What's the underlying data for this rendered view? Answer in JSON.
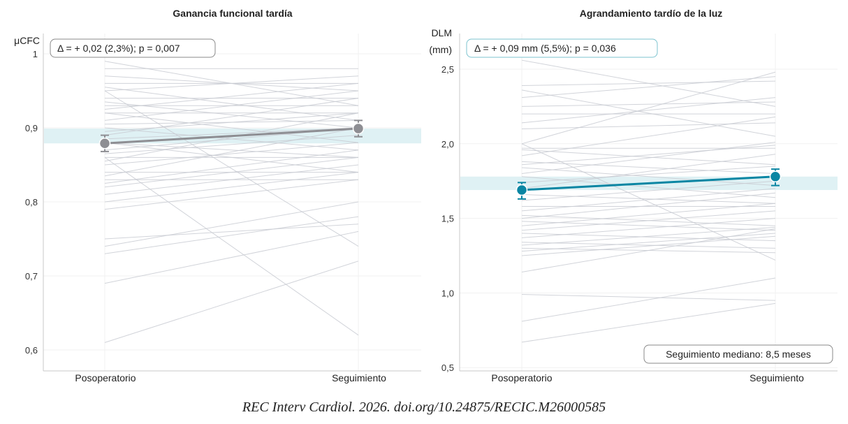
{
  "colors": {
    "individual_line": "#c9ccd3",
    "band": "#dff1f4",
    "left_mean": "#8e8e93",
    "right_mean": "#0a86a3",
    "right_box_border": "#7cc3cf",
    "left_box_border": "#888888",
    "grid": "#f1f1f1",
    "axis": "#c8c8c8"
  },
  "citation": "REC Interv Cardiol. 2026. doi.org/10.24875/RECIC.M26000585",
  "chart_data": [
    {
      "type": "line",
      "title": "Ganancia funcional tardía",
      "ylabel": "μCFC",
      "xlabel": "",
      "categories": [
        "Posoperatorio",
        "Seguimiento"
      ],
      "ylim": [
        0.57,
        1.0
      ],
      "yticks": [
        0.6,
        0.7,
        0.8,
        0.9,
        1.0
      ],
      "ytick_labels": [
        "0,6",
        "0,7",
        "0,8",
        "0,9",
        "1"
      ],
      "grid": true,
      "annotation": "Δ = + 0,02 (2,3%); p = 0,007",
      "mean": {
        "values": [
          0.879,
          0.899
        ],
        "ci_low": [
          0.868,
          0.888
        ],
        "ci_high": [
          0.89,
          0.91
        ]
      },
      "band": [
        0.879,
        0.899
      ],
      "individual": [
        [
          0.99,
          0.93
        ],
        [
          0.98,
          0.98
        ],
        [
          0.96,
          0.96
        ],
        [
          0.955,
          0.91
        ],
        [
          0.95,
          0.97
        ],
        [
          0.94,
          0.94
        ],
        [
          0.935,
          0.9
        ],
        [
          0.93,
          0.93
        ],
        [
          0.925,
          0.96
        ],
        [
          0.92,
          0.92
        ],
        [
          0.91,
          0.95
        ],
        [
          0.905,
          0.91
        ],
        [
          0.9,
          0.87
        ],
        [
          0.895,
          0.92
        ],
        [
          0.89,
          0.94
        ],
        [
          0.885,
          0.9
        ],
        [
          0.88,
          0.86
        ],
        [
          0.87,
          0.9
        ],
        [
          0.865,
          0.89
        ],
        [
          0.86,
          0.86
        ],
        [
          0.855,
          0.92
        ],
        [
          0.85,
          0.88
        ],
        [
          0.84,
          0.84
        ],
        [
          0.835,
          0.9
        ],
        [
          0.83,
          0.83
        ],
        [
          0.825,
          0.87
        ],
        [
          0.82,
          0.86
        ],
        [
          0.81,
          0.85
        ],
        [
          0.8,
          0.84
        ],
        [
          0.79,
          0.83
        ],
        [
          0.95,
          0.74
        ],
        [
          0.92,
          0.88
        ],
        [
          0.88,
          0.84
        ],
        [
          0.86,
          0.62
        ],
        [
          0.75,
          0.77
        ],
        [
          0.74,
          0.8
        ],
        [
          0.73,
          0.78
        ],
        [
          0.69,
          0.76
        ],
        [
          0.61,
          0.72
        ],
        [
          0.97,
          0.95
        ]
      ]
    },
    {
      "type": "line",
      "title": "Agrandamiento tardío de la luz",
      "ylabel": "DLM\n(mm)",
      "xlabel": "",
      "categories": [
        "Posoperatorio",
        "Seguimiento"
      ],
      "ylim": [
        0.5,
        2.64
      ],
      "yticks": [
        0.5,
        1.0,
        1.5,
        2.0,
        2.5
      ],
      "ytick_labels": [
        "0,5",
        "1,0",
        "1,5",
        "2,0",
        "2,5"
      ],
      "grid": true,
      "annotation": "Δ = + 0,09 mm (5,5%); p = 0,036",
      "annotation2": "Seguimiento mediano: 8,5 meses",
      "mean": {
        "values": [
          1.69,
          1.78
        ],
        "ci_low": [
          1.63,
          1.72
        ],
        "ci_high": [
          1.74,
          1.83
        ]
      },
      "band": [
        1.69,
        1.78
      ],
      "individual": [
        [
          2.56,
          2.25
        ],
        [
          2.39,
          2.42
        ],
        [
          2.36,
          2.05
        ],
        [
          2.31,
          2.45
        ],
        [
          2.25,
          2.28
        ],
        [
          2.2,
          2.2
        ],
        [
          2.14,
          2.31
        ],
        [
          2.1,
          2.14
        ],
        [
          2.0,
          2.48
        ],
        [
          1.97,
          1.97
        ],
        [
          1.96,
          1.86
        ],
        [
          1.92,
          2.18
        ],
        [
          1.88,
          1.8
        ],
        [
          1.86,
          1.99
        ],
        [
          1.84,
          1.72
        ],
        [
          1.8,
          2.01
        ],
        [
          1.78,
          1.64
        ],
        [
          1.74,
          1.85
        ],
        [
          1.7,
          1.93
        ],
        [
          1.66,
          1.6
        ],
        [
          1.62,
          1.75
        ],
        [
          1.58,
          1.58
        ],
        [
          1.55,
          1.7
        ],
        [
          1.52,
          1.45
        ],
        [
          1.5,
          1.67
        ],
        [
          1.48,
          1.42
        ],
        [
          1.45,
          1.6
        ],
        [
          1.42,
          1.55
        ],
        [
          1.4,
          1.35
        ],
        [
          1.37,
          1.5
        ],
        [
          1.34,
          1.3
        ],
        [
          1.32,
          1.44
        ],
        [
          1.3,
          1.27
        ],
        [
          1.28,
          1.4
        ],
        [
          1.25,
          1.38
        ],
        [
          1.14,
          1.43
        ],
        [
          0.99,
          0.95
        ],
        [
          0.81,
          1.1
        ],
        [
          0.67,
          0.93
        ],
        [
          2.0,
          1.22
        ]
      ]
    }
  ]
}
